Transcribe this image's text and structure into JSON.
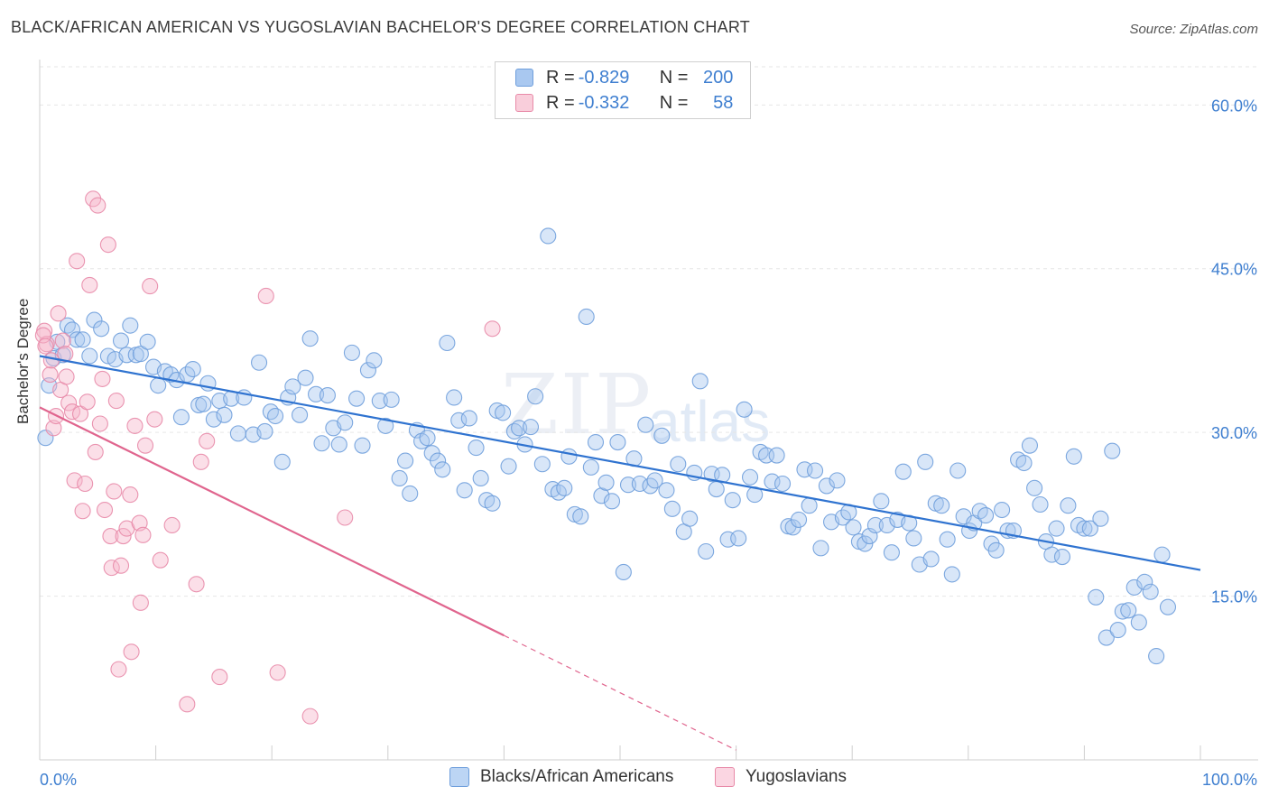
{
  "header": {
    "title": "BLACK/AFRICAN AMERICAN VS YUGOSLAVIAN BACHELOR'S DEGREE CORRELATION CHART",
    "source": "Source: ZipAtlas.com"
  },
  "watermark": {
    "zip": "ZIP",
    "atlas": "atlas"
  },
  "legend": {
    "rows": [
      {
        "r_label": "R = ",
        "r_value": "-0.829",
        "n_label": "N = ",
        "n_value": "200"
      },
      {
        "r_label": "R = ",
        "r_value": "-0.332",
        "n_label": "N = ",
        "n_value": "58"
      }
    ]
  },
  "colors": {
    "blue_fill": "#a9c8f0",
    "blue_stroke": "#6f9fdc",
    "blue_line": "#2f73d0",
    "pink_fill": "#f6b9cc",
    "pink_stroke": "#e88aa8",
    "pink_line": "#e0658e",
    "tick_label": "#3f7fd0",
    "grid": "#e6e6e6"
  },
  "chart_data": {
    "type": "scatter",
    "title": "BLACK/AFRICAN AMERICAN VS YUGOSLAVIAN BACHELOR'S DEGREE CORRELATION CHART",
    "xlabel": "",
    "ylabel": "Bachelor's Degree",
    "xlim": [
      0,
      100
    ],
    "ylim": [
      0,
      63.5
    ],
    "x_tick_labels": [
      "0.0%",
      "100.0%"
    ],
    "y_ticks": [
      15,
      30,
      45,
      60
    ],
    "y_tick_labels": [
      "15.0%",
      "30.0%",
      "45.0%",
      "60.0%"
    ],
    "grid": true,
    "legend_position": "top-center",
    "series": [
      {
        "name": "Blacks/African Americans",
        "trend": {
          "x": [
            0,
            100
          ],
          "y": [
            37.0,
            17.4
          ]
        },
        "points": [
          [
            0.5,
            29.5
          ],
          [
            0.8,
            34.3
          ],
          [
            1.2,
            36.8
          ],
          [
            1.5,
            38.3
          ],
          [
            2.0,
            37.1
          ],
          [
            2.4,
            39.8
          ],
          [
            2.8,
            39.4
          ],
          [
            3.2,
            38.5
          ],
          [
            3.7,
            38.5
          ],
          [
            4.3,
            37.0
          ],
          [
            4.7,
            40.3
          ],
          [
            5.3,
            39.5
          ],
          [
            5.9,
            37.0
          ],
          [
            6.5,
            36.7
          ],
          [
            7.0,
            38.4
          ],
          [
            7.5,
            37.1
          ],
          [
            7.8,
            39.8
          ],
          [
            8.3,
            37.1
          ],
          [
            8.7,
            37.2
          ],
          [
            9.3,
            38.3
          ],
          [
            9.8,
            36.0
          ],
          [
            10.2,
            34.3
          ],
          [
            10.8,
            35.6
          ],
          [
            11.3,
            35.3
          ],
          [
            11.8,
            34.8
          ],
          [
            12.2,
            31.4
          ],
          [
            12.7,
            35.3
          ],
          [
            13.2,
            35.8
          ],
          [
            13.7,
            32.5
          ],
          [
            14.1,
            32.6
          ],
          [
            14.5,
            34.5
          ],
          [
            15.0,
            31.2
          ],
          [
            15.5,
            32.9
          ],
          [
            15.9,
            31.6
          ],
          [
            16.5,
            33.1
          ],
          [
            17.1,
            29.9
          ],
          [
            17.6,
            33.2
          ],
          [
            18.4,
            29.8
          ],
          [
            18.9,
            36.4
          ],
          [
            19.4,
            30.1
          ],
          [
            19.9,
            31.9
          ],
          [
            20.3,
            31.5
          ],
          [
            20.9,
            27.3
          ],
          [
            21.4,
            33.2
          ],
          [
            21.8,
            34.2
          ],
          [
            22.4,
            31.6
          ],
          [
            22.9,
            35.0
          ],
          [
            23.3,
            38.6
          ],
          [
            23.8,
            33.5
          ],
          [
            24.3,
            29.0
          ],
          [
            24.8,
            33.4
          ],
          [
            25.3,
            30.4
          ],
          [
            25.8,
            28.9
          ],
          [
            26.3,
            30.9
          ],
          [
            26.9,
            37.3
          ],
          [
            27.3,
            33.1
          ],
          [
            27.8,
            28.8
          ],
          [
            28.3,
            35.7
          ],
          [
            28.8,
            36.6
          ],
          [
            29.3,
            32.9
          ],
          [
            29.8,
            30.6
          ],
          [
            30.3,
            33.0
          ],
          [
            31.0,
            25.8
          ],
          [
            31.5,
            27.4
          ],
          [
            31.9,
            24.4
          ],
          [
            32.5,
            30.2
          ],
          [
            32.9,
            29.2
          ],
          [
            33.4,
            29.5
          ],
          [
            33.8,
            28.1
          ],
          [
            34.3,
            27.4
          ],
          [
            34.7,
            26.6
          ],
          [
            35.1,
            38.2
          ],
          [
            35.7,
            33.2
          ],
          [
            36.1,
            31.1
          ],
          [
            36.6,
            24.7
          ],
          [
            37.0,
            31.3
          ],
          [
            37.6,
            28.6
          ],
          [
            38.0,
            25.8
          ],
          [
            38.5,
            23.8
          ],
          [
            39.0,
            23.5
          ],
          [
            39.4,
            32.0
          ],
          [
            39.9,
            31.8
          ],
          [
            40.4,
            26.9
          ],
          [
            40.9,
            30.1
          ],
          [
            41.3,
            30.4
          ],
          [
            41.8,
            28.9
          ],
          [
            42.3,
            30.5
          ],
          [
            42.7,
            33.3
          ],
          [
            43.3,
            27.1
          ],
          [
            43.8,
            48.0
          ],
          [
            44.2,
            24.8
          ],
          [
            44.7,
            24.5
          ],
          [
            45.2,
            24.9
          ],
          [
            45.6,
            27.8
          ],
          [
            46.1,
            22.5
          ],
          [
            46.6,
            22.3
          ],
          [
            47.1,
            40.6
          ],
          [
            47.5,
            26.8
          ],
          [
            47.9,
            29.1
          ],
          [
            48.4,
            24.2
          ],
          [
            48.8,
            25.4
          ],
          [
            49.3,
            23.7
          ],
          [
            49.8,
            29.1
          ],
          [
            50.3,
            17.2
          ],
          [
            50.7,
            25.2
          ],
          [
            51.2,
            27.6
          ],
          [
            51.7,
            25.3
          ],
          [
            52.2,
            30.7
          ],
          [
            52.6,
            25.1
          ],
          [
            53.0,
            25.6
          ],
          [
            53.6,
            29.7
          ],
          [
            54.0,
            24.7
          ],
          [
            54.5,
            23.0
          ],
          [
            55.0,
            27.1
          ],
          [
            55.5,
            20.9
          ],
          [
            56.0,
            22.1
          ],
          [
            56.4,
            26.3
          ],
          [
            56.9,
            34.7
          ],
          [
            57.4,
            19.1
          ],
          [
            57.9,
            26.2
          ],
          [
            58.3,
            24.8
          ],
          [
            58.8,
            26.1
          ],
          [
            59.3,
            20.2
          ],
          [
            59.7,
            23.8
          ],
          [
            60.2,
            20.3
          ],
          [
            60.7,
            32.1
          ],
          [
            61.2,
            25.9
          ],
          [
            61.6,
            24.3
          ],
          [
            62.1,
            28.2
          ],
          [
            62.6,
            27.9
          ],
          [
            63.1,
            25.5
          ],
          [
            63.5,
            27.9
          ],
          [
            64.0,
            25.3
          ],
          [
            64.5,
            21.4
          ],
          [
            64.9,
            21.3
          ],
          [
            65.4,
            22.0
          ],
          [
            65.9,
            26.6
          ],
          [
            66.3,
            23.3
          ],
          [
            66.8,
            26.5
          ],
          [
            67.3,
            19.4
          ],
          [
            67.8,
            25.1
          ],
          [
            68.2,
            21.8
          ],
          [
            68.7,
            25.6
          ],
          [
            69.2,
            22.2
          ],
          [
            69.7,
            22.7
          ],
          [
            70.1,
            21.3
          ],
          [
            70.6,
            20.0
          ],
          [
            71.1,
            19.8
          ],
          [
            71.5,
            20.5
          ],
          [
            72.0,
            21.5
          ],
          [
            72.5,
            23.7
          ],
          [
            73.0,
            21.5
          ],
          [
            73.4,
            19.0
          ],
          [
            73.9,
            22.0
          ],
          [
            74.4,
            26.4
          ],
          [
            74.9,
            21.7
          ],
          [
            75.3,
            20.3
          ],
          [
            75.8,
            17.9
          ],
          [
            76.3,
            27.3
          ],
          [
            76.8,
            18.4
          ],
          [
            77.2,
            23.5
          ],
          [
            77.7,
            23.3
          ],
          [
            78.2,
            20.2
          ],
          [
            78.6,
            17.0
          ],
          [
            79.1,
            26.5
          ],
          [
            79.6,
            22.3
          ],
          [
            80.1,
            21.0
          ],
          [
            80.5,
            21.7
          ],
          [
            81.0,
            22.8
          ],
          [
            81.5,
            22.4
          ],
          [
            82.0,
            19.8
          ],
          [
            82.4,
            19.2
          ],
          [
            82.9,
            22.9
          ],
          [
            83.4,
            21.0
          ],
          [
            83.9,
            21.0
          ],
          [
            84.3,
            27.5
          ],
          [
            84.8,
            27.2
          ],
          [
            85.3,
            28.8
          ],
          [
            85.7,
            24.9
          ],
          [
            86.2,
            23.4
          ],
          [
            86.7,
            20.0
          ],
          [
            87.2,
            18.8
          ],
          [
            87.6,
            21.2
          ],
          [
            88.1,
            18.6
          ],
          [
            88.6,
            23.3
          ],
          [
            89.1,
            27.8
          ],
          [
            89.5,
            21.5
          ],
          [
            90.0,
            21.2
          ],
          [
            90.5,
            21.2
          ],
          [
            91.0,
            14.9
          ],
          [
            91.4,
            22.1
          ],
          [
            91.9,
            11.2
          ],
          [
            92.4,
            28.3
          ],
          [
            92.9,
            11.9
          ],
          [
            93.3,
            13.6
          ],
          [
            93.8,
            13.7
          ],
          [
            94.3,
            15.8
          ],
          [
            94.7,
            12.6
          ],
          [
            95.2,
            16.3
          ],
          [
            95.7,
            15.4
          ],
          [
            96.2,
            9.5
          ],
          [
            96.7,
            18.8
          ],
          [
            97.2,
            14.0
          ]
        ]
      },
      {
        "name": "Yugoslavians",
        "trend": {
          "x": [
            0,
            40.0
          ],
          "y": [
            32.3,
            11.4
          ]
        },
        "trend_dashed": {
          "x": [
            40.0,
            60.0
          ],
          "y": [
            11.4,
            0.9
          ]
        },
        "points": [
          [
            0.4,
            39.3
          ],
          [
            0.6,
            38.1
          ],
          [
            0.9,
            35.3
          ],
          [
            1.2,
            30.4
          ],
          [
            1.4,
            31.5
          ],
          [
            1.6,
            40.9
          ],
          [
            1.8,
            33.9
          ],
          [
            2.0,
            38.4
          ],
          [
            2.2,
            37.2
          ],
          [
            2.3,
            35.1
          ],
          [
            2.5,
            32.7
          ],
          [
            2.8,
            31.9
          ],
          [
            3.0,
            25.6
          ],
          [
            3.2,
            45.7
          ],
          [
            3.5,
            31.7
          ],
          [
            3.7,
            22.8
          ],
          [
            3.9,
            25.3
          ],
          [
            4.1,
            32.8
          ],
          [
            4.3,
            43.5
          ],
          [
            4.6,
            51.4
          ],
          [
            4.8,
            28.2
          ],
          [
            5.0,
            50.8
          ],
          [
            5.2,
            30.8
          ],
          [
            5.4,
            34.9
          ],
          [
            5.6,
            22.9
          ],
          [
            5.9,
            47.2
          ],
          [
            6.1,
            20.5
          ],
          [
            6.2,
            17.6
          ],
          [
            6.4,
            24.6
          ],
          [
            6.6,
            32.9
          ],
          [
            6.8,
            8.3
          ],
          [
            7.0,
            17.8
          ],
          [
            7.2,
            20.5
          ],
          [
            7.5,
            21.2
          ],
          [
            7.8,
            24.3
          ],
          [
            7.9,
            9.9
          ],
          [
            8.2,
            30.6
          ],
          [
            8.6,
            21.7
          ],
          [
            8.7,
            14.4
          ],
          [
            8.9,
            20.6
          ],
          [
            9.1,
            28.8
          ],
          [
            9.5,
            43.4
          ],
          [
            9.9,
            31.2
          ],
          [
            10.4,
            18.3
          ],
          [
            11.4,
            21.5
          ],
          [
            12.7,
            5.1
          ],
          [
            13.5,
            16.1
          ],
          [
            13.9,
            27.3
          ],
          [
            14.4,
            29.2
          ],
          [
            15.5,
            7.6
          ],
          [
            19.5,
            42.5
          ],
          [
            20.5,
            8.0
          ],
          [
            23.3,
            4.0
          ],
          [
            26.3,
            22.2
          ],
          [
            39.0,
            39.5
          ],
          [
            0.3,
            38.9
          ],
          [
            0.5,
            37.9
          ],
          [
            1.0,
            36.6
          ]
        ]
      }
    ]
  },
  "bottom_legend": [
    {
      "label": "Blacks/African Americans"
    },
    {
      "label": "Yugoslavians"
    }
  ]
}
